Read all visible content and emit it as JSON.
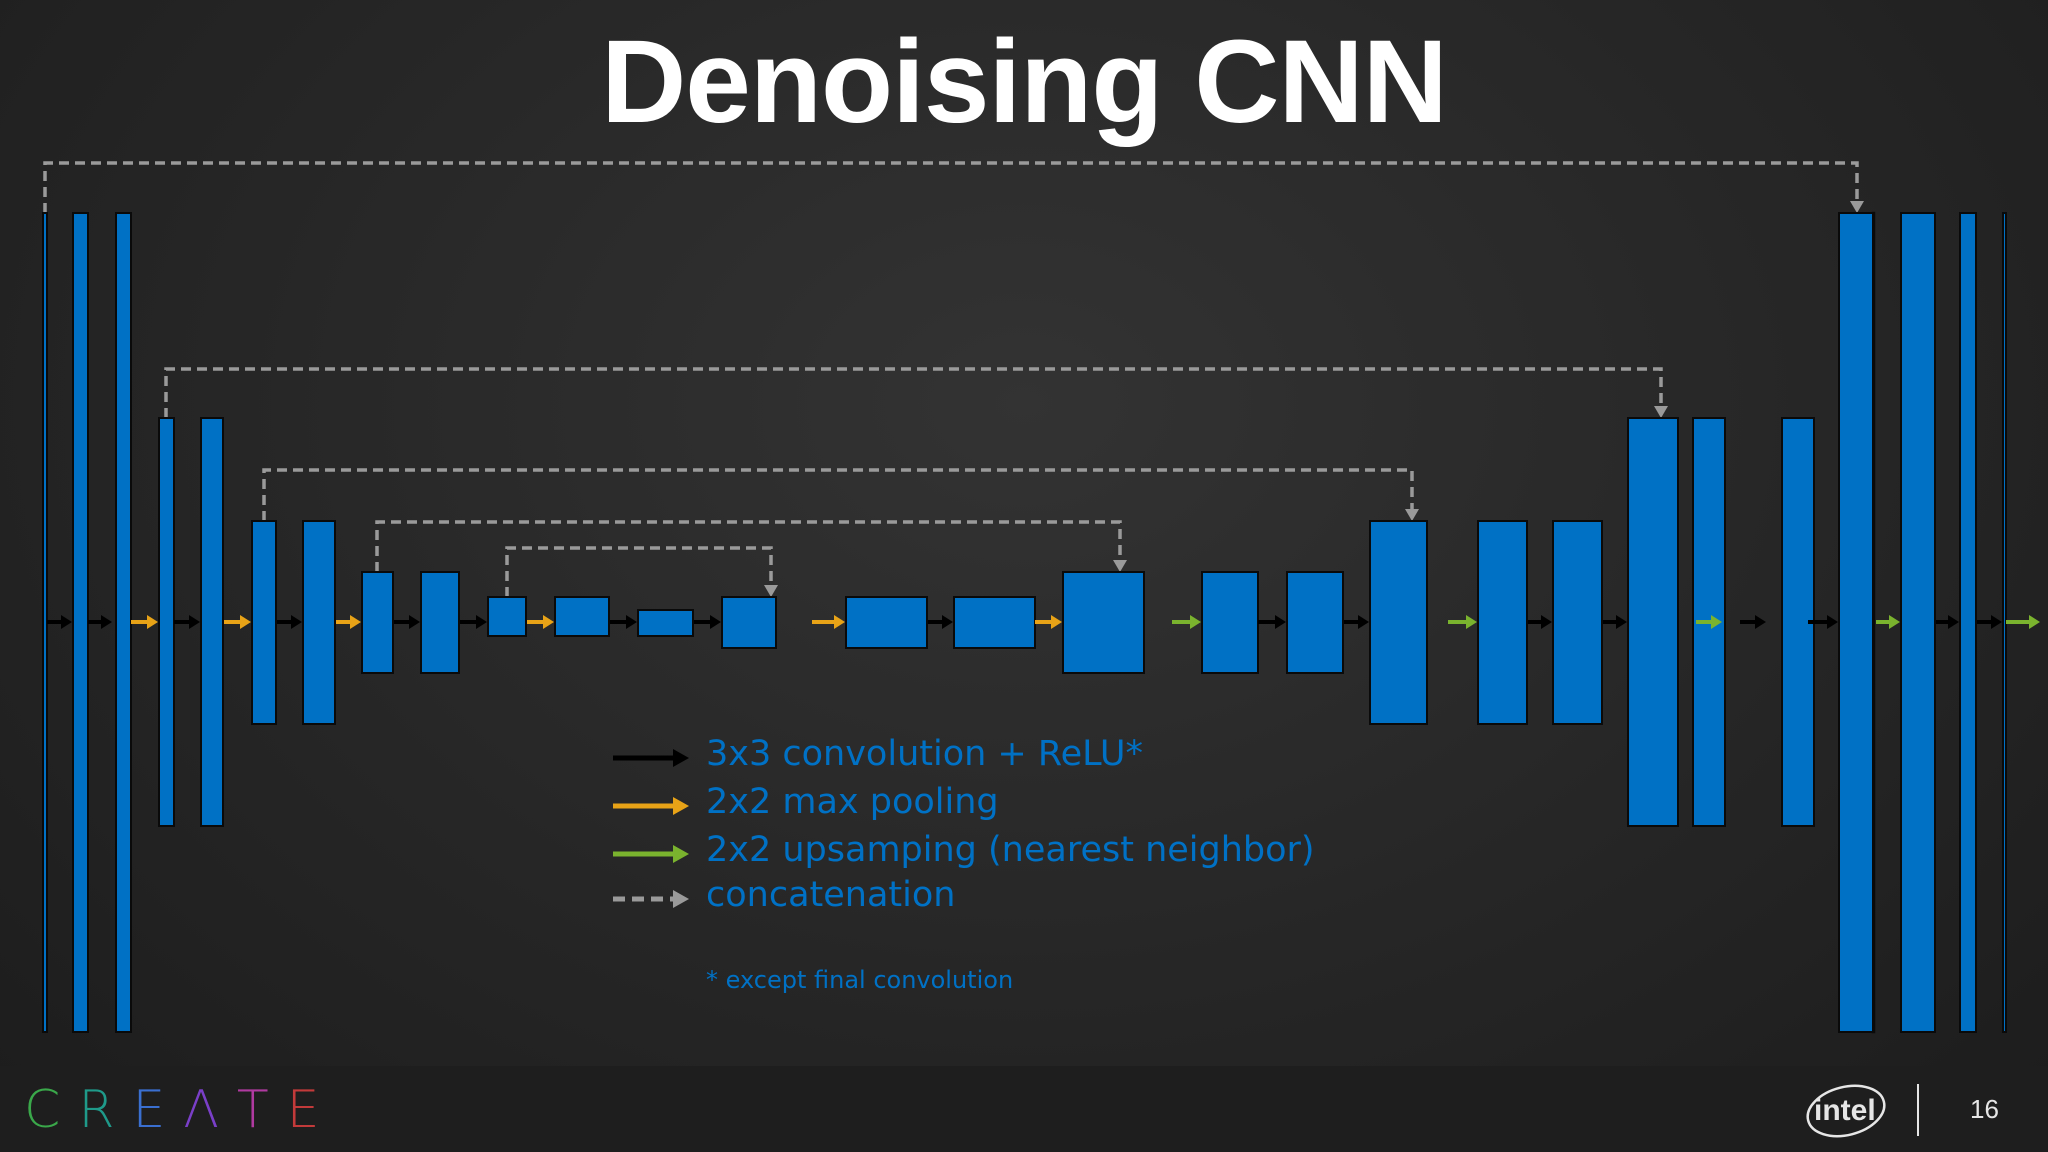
{
  "slide": {
    "title": "Denoising CNN",
    "page_number": "16"
  },
  "legend": [
    {
      "label": "3x3 convolution + ReLU*",
      "arrow_style": "solid",
      "arrow_color": "#000000",
      "text_color": "#0071c5"
    },
    {
      "label": "2x2 max pooling",
      "arrow_style": "solid",
      "arrow_color": "#e8a317",
      "text_color": "#0071c5"
    },
    {
      "label": "2x2 upsamping (nearest neighbor)",
      "arrow_style": "solid",
      "arrow_color": "#7ab32e",
      "text_color": "#0071c5"
    },
    {
      "label": "concatenation",
      "arrow_style": "dashed",
      "arrow_color": "#9a9a9a",
      "text_color": "#0071c5"
    }
  ],
  "footnote": "* except final convolution",
  "footer": {
    "brand_letters": [
      "C",
      "R",
      "E",
      "Λ",
      "T",
      "E"
    ],
    "brand_colors": [
      "#3aa84a",
      "#1f9a8a",
      "#3a6fd0",
      "#7a3fc8",
      "#b03aa0",
      "#c23a3a"
    ],
    "intel_logo": "intel"
  },
  "colors": {
    "layer_fill": "#0071c5",
    "layer_outline": "#0a0a0a",
    "concat_outline": "#0a0a0a",
    "conv_arrow": "#000000",
    "pool_arrow": "#e8a317",
    "upsample_arrow": "#7ab32e",
    "concat_line": "#9a9a9a"
  },
  "network": {
    "layer_count": 31,
    "operations": [
      "conv",
      "conv",
      "pool",
      "conv",
      "pool",
      "conv",
      "pool",
      "conv",
      "conv",
      "pool",
      "conv",
      "conv",
      "pool",
      "conv",
      "pool",
      "upsample",
      "conv",
      "conv",
      "upsample",
      "conv",
      "conv",
      "upsample",
      "conv",
      "conv",
      "upsample",
      "conv",
      "conv",
      "upsample",
      "conv",
      "conv",
      "conv"
    ],
    "skip_connections": 5
  }
}
